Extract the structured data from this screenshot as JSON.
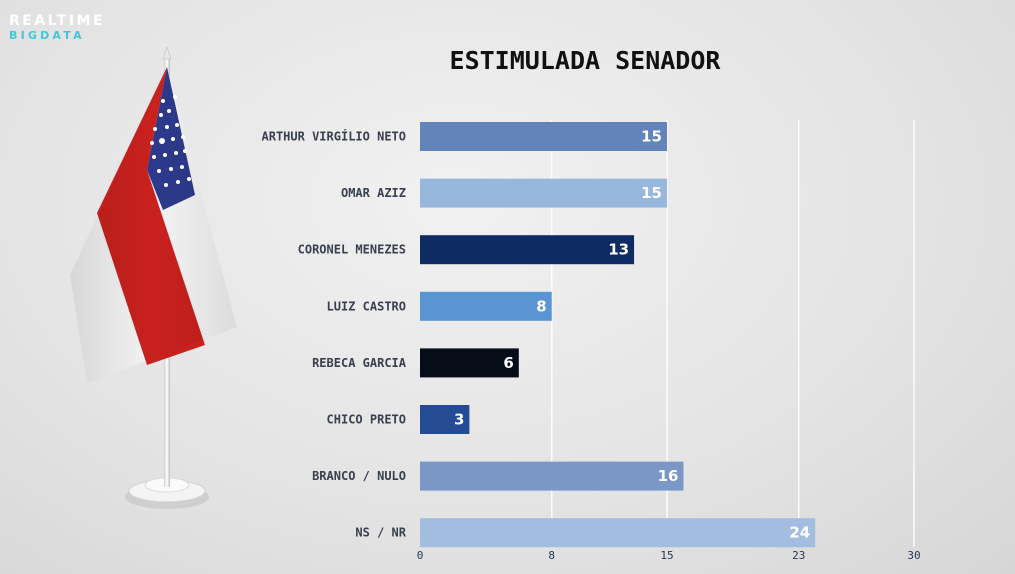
{
  "logo": {
    "line1": "REALTIME",
    "line2": "BIGDATA"
  },
  "chart_data": {
    "type": "bar",
    "orientation": "horizontal",
    "title": "ESTIMULADA SENADOR",
    "categories": [
      "ARTHUR VIRGÍLIO NETO",
      "OMAR AZIZ",
      "CORONEL MENEZES",
      "LUIZ CASTRO",
      "REBECA GARCIA",
      "CHICO PRETO",
      "BRANCO / NULO",
      "NS / NR"
    ],
    "values": [
      15,
      15,
      13,
      8,
      6,
      3,
      16,
      24
    ],
    "value_labels": [
      "15",
      "15",
      "13",
      "8",
      "6",
      "3",
      "16",
      "24"
    ],
    "bar_colors": [
      "#6383bb",
      "#97b7dc",
      "#0f2b64",
      "#5b94d2",
      "#070d18",
      "#254b94",
      "#7a97c6",
      "#a2bde0"
    ],
    "x_ticks": [
      0,
      8,
      15,
      23,
      30
    ],
    "x_tick_labels": [
      "0",
      "8",
      "15",
      "23",
      "30"
    ],
    "xlim": [
      0,
      30
    ],
    "grid": true
  }
}
